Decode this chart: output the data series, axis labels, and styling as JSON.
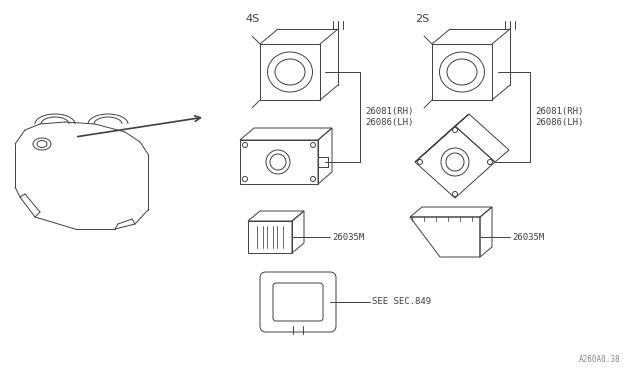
{
  "bg_color": "#ffffff",
  "line_color": "#404040",
  "text_color": "#404040",
  "diagram_code": "A260A0.38",
  "labels": {
    "4s": "4S",
    "2s": "2S",
    "part1_label": "26081(RH)\n26086(LH)",
    "part2_label": "26035M",
    "part3_label": "26035M",
    "part4_label": "SEE SEC.849"
  },
  "figsize": [
    6.4,
    3.72
  ],
  "dpi": 100
}
